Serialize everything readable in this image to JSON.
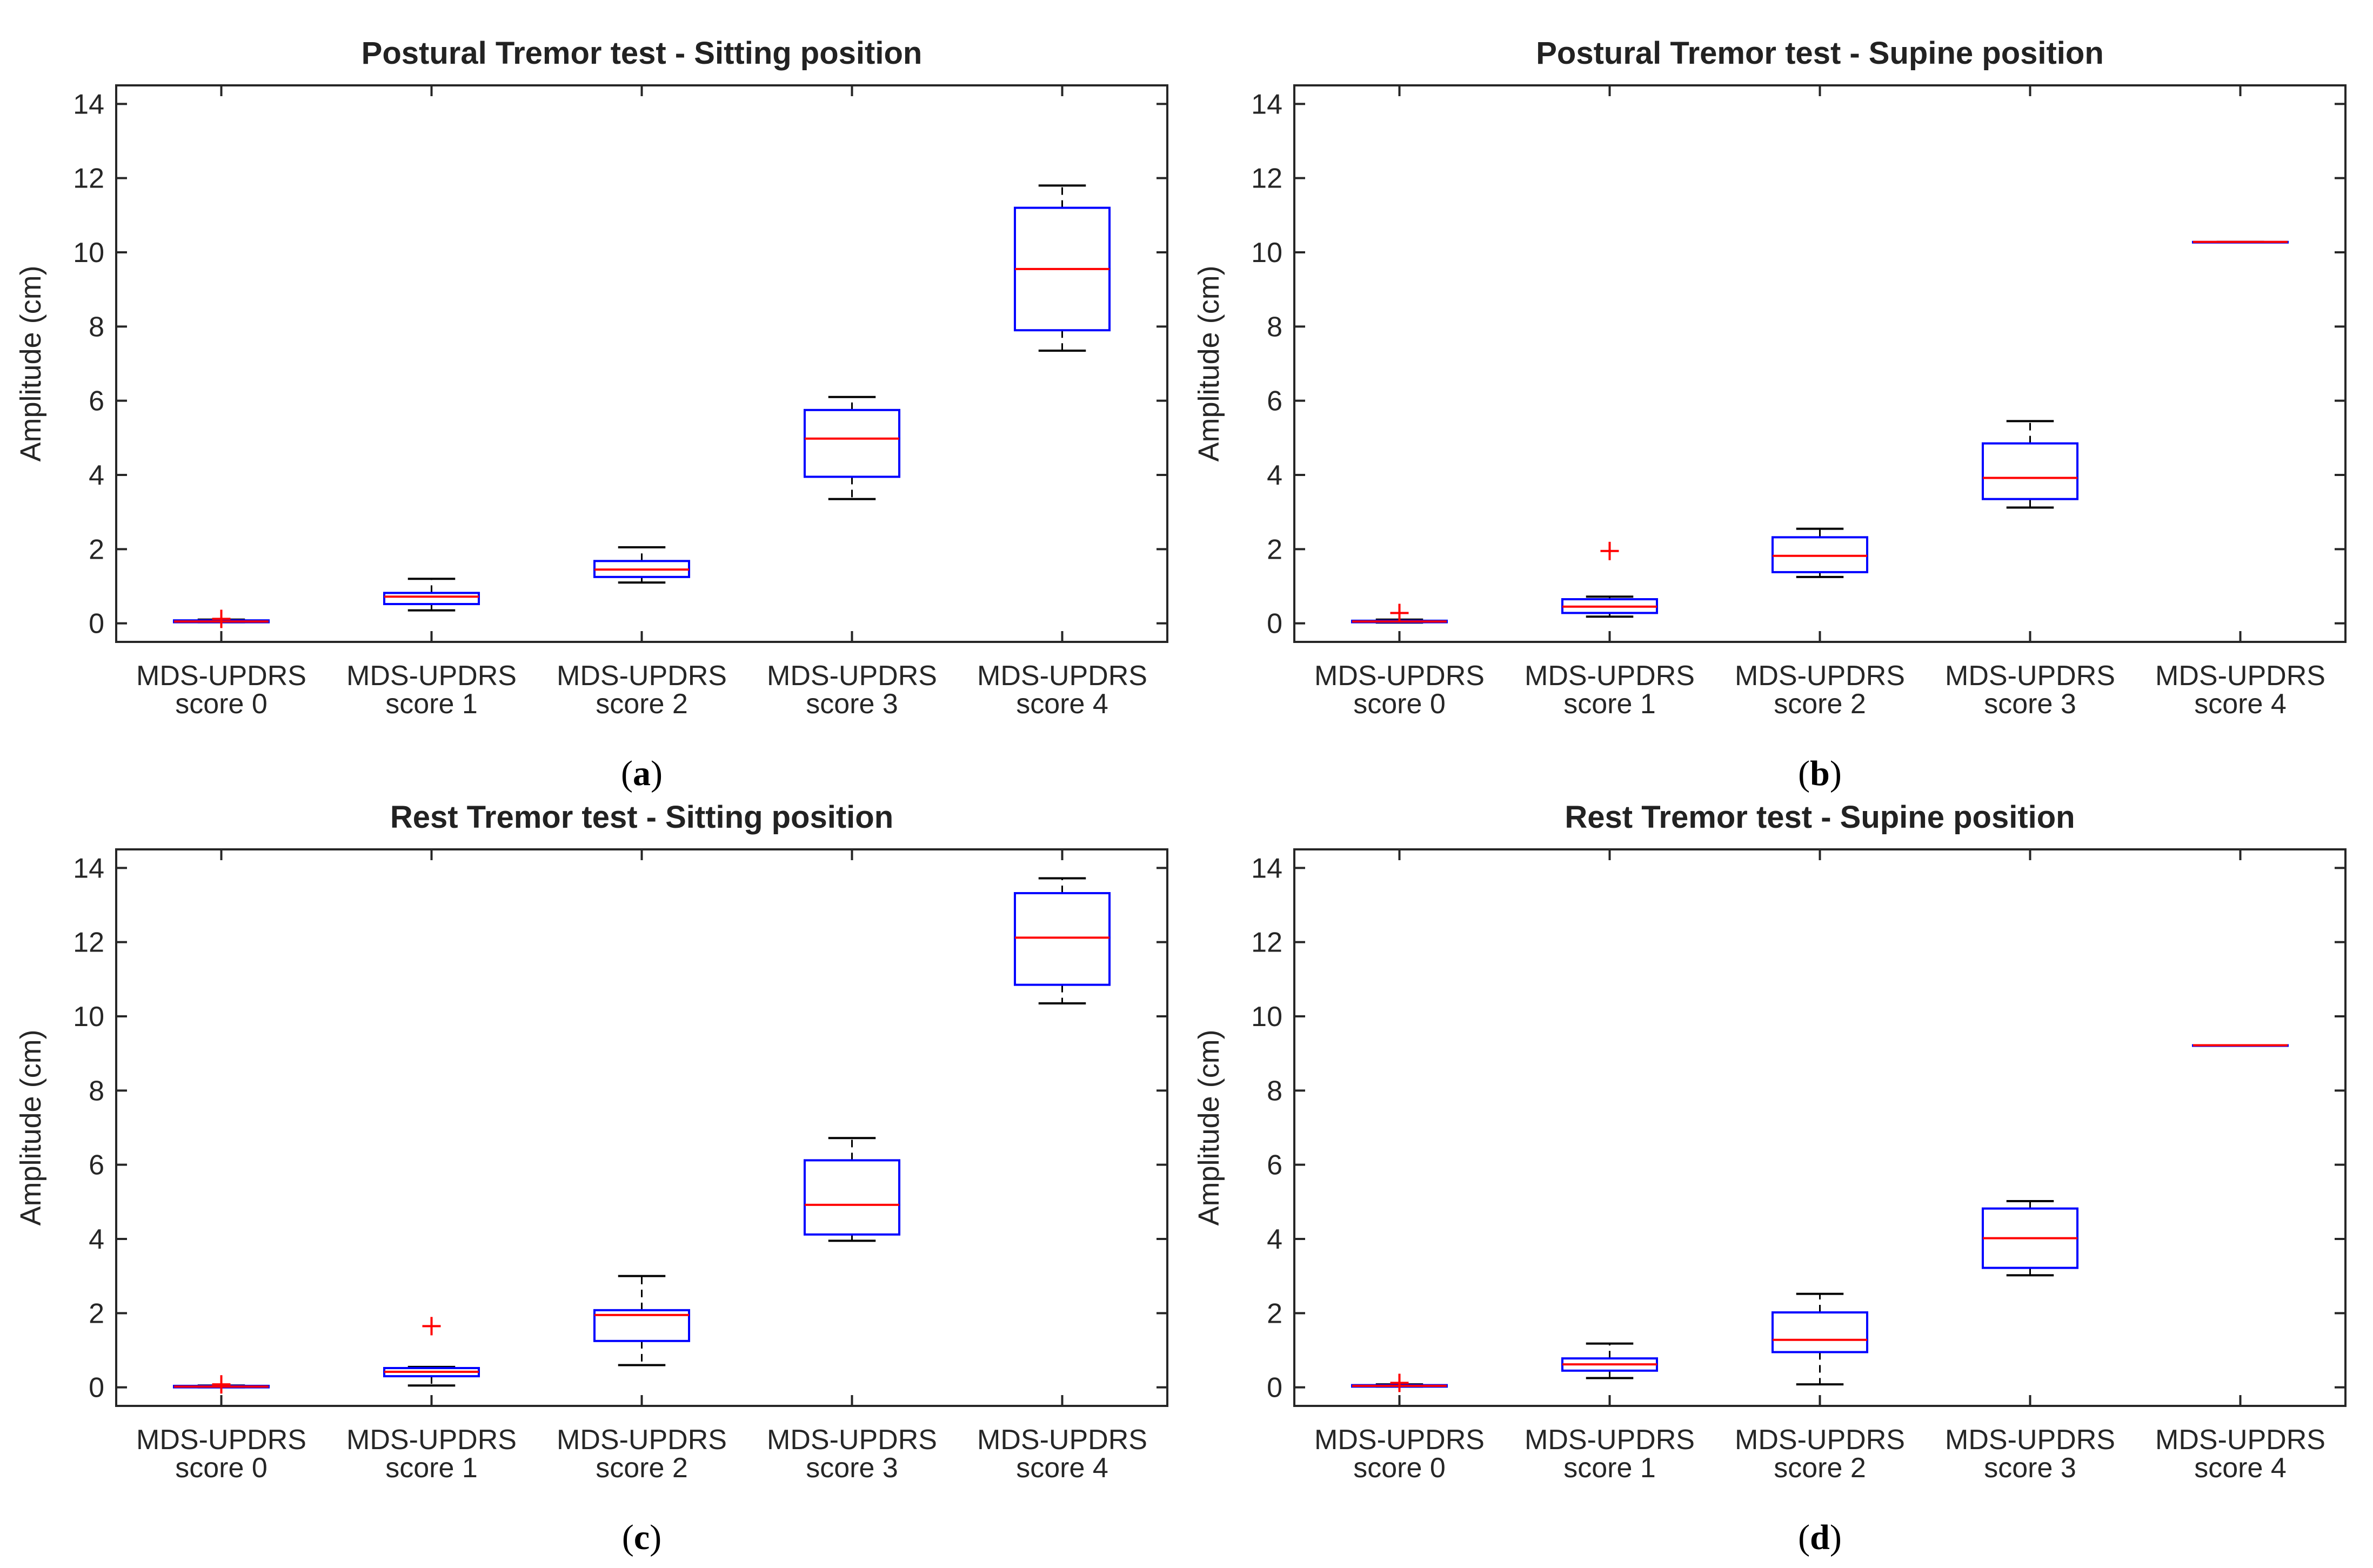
{
  "chart_data": [
    {
      "type": "box",
      "panel_label": "a",
      "title": "Postural Tremor test - Sitting position",
      "ylabel": "Amplitude (cm)",
      "xlabel": "",
      "ylim": [
        -0.5,
        14.5
      ],
      "yticks": [
        0,
        2,
        4,
        6,
        8,
        10,
        12,
        14
      ],
      "categories": [
        {
          "line1": "MDS-UPDRS",
          "line2": "score 0"
        },
        {
          "line1": "MDS-UPDRS",
          "line2": "score 1"
        },
        {
          "line1": "MDS-UPDRS",
          "line2": "score 2"
        },
        {
          "line1": "MDS-UPDRS",
          "line2": "score 3"
        },
        {
          "line1": "MDS-UPDRS",
          "line2": "score 4"
        }
      ],
      "boxes": [
        {
          "min": 0.03,
          "q1": 0.03,
          "median": 0.05,
          "q3": 0.08,
          "max": 0.1,
          "outliers": [
            0.12
          ]
        },
        {
          "min": 0.35,
          "q1": 0.52,
          "median": 0.72,
          "q3": 0.82,
          "max": 1.2,
          "outliers": []
        },
        {
          "min": 1.1,
          "q1": 1.25,
          "median": 1.45,
          "q3": 1.68,
          "max": 2.05,
          "outliers": []
        },
        {
          "min": 3.35,
          "q1": 3.95,
          "median": 4.98,
          "q3": 5.75,
          "max": 6.1,
          "outliers": []
        },
        {
          "min": 7.35,
          "q1": 7.9,
          "median": 9.55,
          "q3": 11.2,
          "max": 11.8,
          "outliers": []
        }
      ]
    },
    {
      "type": "box",
      "panel_label": "b",
      "title": "Postural Tremor test - Supine position",
      "ylabel": "Amplitude (cm)",
      "xlabel": "",
      "ylim": [
        -0.5,
        14.5
      ],
      "yticks": [
        0,
        2,
        4,
        6,
        8,
        10,
        12,
        14
      ],
      "categories": [
        {
          "line1": "MDS-UPDRS",
          "line2": "score 0"
        },
        {
          "line1": "MDS-UPDRS",
          "line2": "score 1"
        },
        {
          "line1": "MDS-UPDRS",
          "line2": "score 2"
        },
        {
          "line1": "MDS-UPDRS",
          "line2": "score 3"
        },
        {
          "line1": "MDS-UPDRS",
          "line2": "score 4"
        }
      ],
      "boxes": [
        {
          "min": 0.02,
          "q1": 0.03,
          "median": 0.05,
          "q3": 0.07,
          "max": 0.1,
          "outliers": [
            0.28
          ]
        },
        {
          "min": 0.18,
          "q1": 0.28,
          "median": 0.45,
          "q3": 0.65,
          "max": 0.72,
          "outliers": [
            1.95
          ]
        },
        {
          "min": 1.25,
          "q1": 1.38,
          "median": 1.82,
          "q3": 2.32,
          "max": 2.55,
          "outliers": []
        },
        {
          "min": 3.12,
          "q1": 3.35,
          "median": 3.92,
          "q3": 4.85,
          "max": 5.45,
          "outliers": []
        },
        {
          "min": 10.28,
          "q1": 10.28,
          "median": 10.28,
          "q3": 10.28,
          "max": 10.28,
          "outliers": []
        }
      ]
    },
    {
      "type": "box",
      "panel_label": "c",
      "title": "Rest Tremor test - Sitting position",
      "ylabel": "Amplitude (cm)",
      "xlabel": "",
      "ylim": [
        -0.5,
        14.5
      ],
      "yticks": [
        0,
        2,
        4,
        6,
        8,
        10,
        12,
        14
      ],
      "categories": [
        {
          "line1": "MDS-UPDRS",
          "line2": "score 0"
        },
        {
          "line1": "MDS-UPDRS",
          "line2": "score 1"
        },
        {
          "line1": "MDS-UPDRS",
          "line2": "score 2"
        },
        {
          "line1": "MDS-UPDRS",
          "line2": "score 3"
        },
        {
          "line1": "MDS-UPDRS",
          "line2": "score 4"
        }
      ],
      "boxes": [
        {
          "min": 0.0,
          "q1": 0.0,
          "median": 0.02,
          "q3": 0.04,
          "max": 0.05,
          "outliers": [
            0.08
          ]
        },
        {
          "min": 0.05,
          "q1": 0.3,
          "median": 0.42,
          "q3": 0.52,
          "max": 0.55,
          "outliers": [
            1.65
          ]
        },
        {
          "min": 0.6,
          "q1": 1.25,
          "median": 1.95,
          "q3": 2.08,
          "max": 3.0,
          "outliers": []
        },
        {
          "min": 3.95,
          "q1": 4.12,
          "median": 4.92,
          "q3": 6.12,
          "max": 6.72,
          "outliers": []
        },
        {
          "min": 10.35,
          "q1": 10.85,
          "median": 12.12,
          "q3": 13.32,
          "max": 13.72,
          "outliers": []
        }
      ]
    },
    {
      "type": "box",
      "panel_label": "d",
      "title": "Rest Tremor test - Supine position",
      "ylabel": "Amplitude (cm)",
      "xlabel": "",
      "ylim": [
        -0.5,
        14.5
      ],
      "yticks": [
        0,
        2,
        4,
        6,
        8,
        10,
        12,
        14
      ],
      "categories": [
        {
          "line1": "MDS-UPDRS",
          "line2": "score 0"
        },
        {
          "line1": "MDS-UPDRS",
          "line2": "score 1"
        },
        {
          "line1": "MDS-UPDRS",
          "line2": "score 2"
        },
        {
          "line1": "MDS-UPDRS",
          "line2": "score 3"
        },
        {
          "line1": "MDS-UPDRS",
          "line2": "score 4"
        }
      ],
      "boxes": [
        {
          "min": 0.02,
          "q1": 0.02,
          "median": 0.04,
          "q3": 0.06,
          "max": 0.08,
          "outliers": [
            0.12
          ]
        },
        {
          "min": 0.25,
          "q1": 0.45,
          "median": 0.62,
          "q3": 0.78,
          "max": 1.18,
          "outliers": []
        },
        {
          "min": 0.08,
          "q1": 0.95,
          "median": 1.28,
          "q3": 2.02,
          "max": 2.52,
          "outliers": []
        },
        {
          "min": 3.02,
          "q1": 3.22,
          "median": 4.02,
          "q3": 4.82,
          "max": 5.02,
          "outliers": []
        },
        {
          "min": 9.22,
          "q1": 9.22,
          "median": 9.22,
          "q3": 9.22,
          "max": 9.22,
          "outliers": []
        }
      ]
    }
  ],
  "colors": {
    "box": "#0000ff",
    "median": "#ff0000",
    "whisker": "#000000",
    "outlier": "#ff0000",
    "axis": "#262626"
  }
}
